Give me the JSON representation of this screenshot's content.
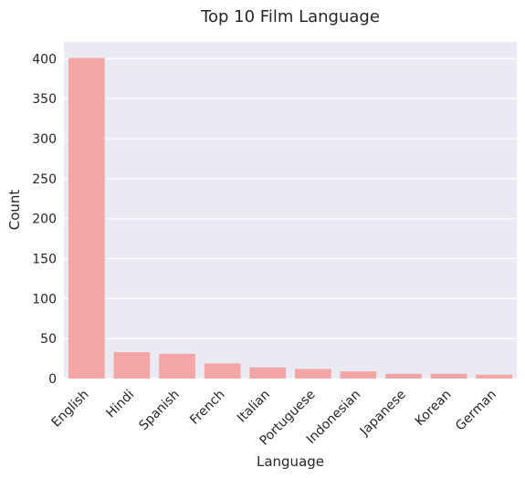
{
  "chart_data": {
    "type": "bar",
    "title": "Top 10 Film Language",
    "xlabel": "Language",
    "ylabel": "Count",
    "categories": [
      "English",
      "Hindi",
      "Spanish",
      "French",
      "Italian",
      "Portuguese",
      "Indonesian",
      "Japanese",
      "Korean",
      "German"
    ],
    "values": [
      401,
      33,
      31,
      19,
      14,
      12,
      9,
      6,
      6,
      5
    ],
    "ylim": [
      0,
      421
    ],
    "yticks": [
      0,
      50,
      100,
      150,
      200,
      250,
      300,
      350,
      400
    ],
    "grid": true,
    "legend": "none",
    "colors": {
      "bar": "#f4a6a6",
      "plot_background": "#eaeaf2",
      "grid": "#ffffff",
      "text": "#262626"
    }
  }
}
